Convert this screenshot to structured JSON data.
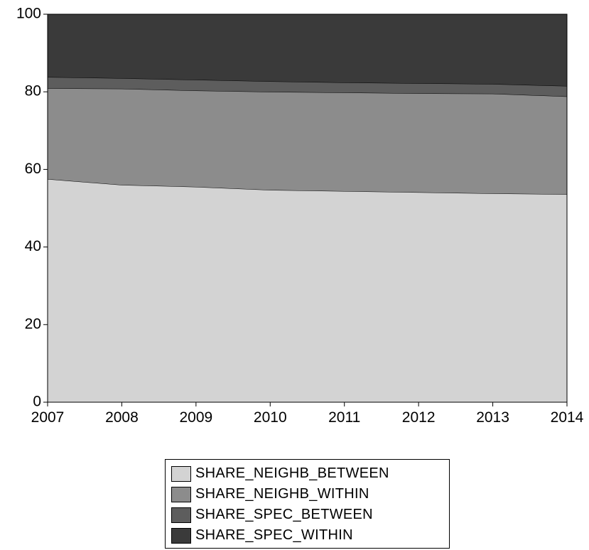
{
  "chart_data": {
    "type": "area",
    "stacked": true,
    "x": [
      "2007",
      "2008",
      "2009",
      "2010",
      "2011",
      "2012",
      "2013",
      "2014"
    ],
    "ylim": [
      0,
      100
    ],
    "yticks": [
      "0",
      "20",
      "40",
      "60",
      "80",
      "100"
    ],
    "grid": false,
    "legend_position": "bottom",
    "series": [
      {
        "name": "SHARE_NEIGHB_BETWEEN",
        "color": "#d3d3d3",
        "values": [
          57.5,
          56.0,
          55.5,
          54.7,
          54.4,
          54.1,
          53.8,
          53.6
        ]
      },
      {
        "name": "SHARE_NEIGHB_WITHIN",
        "color": "#8c8c8c",
        "values": [
          23.4,
          24.8,
          24.8,
          25.3,
          25.4,
          25.5,
          25.7,
          25.2
        ]
      },
      {
        "name": "SHARE_SPEC_BETWEEN",
        "color": "#5d5d5d",
        "values": [
          2.9,
          2.7,
          2.8,
          2.7,
          2.6,
          2.6,
          2.5,
          2.7
        ]
      },
      {
        "name": "SHARE_SPEC_WITHIN",
        "color": "#3a3a3a",
        "values": [
          16.2,
          16.5,
          16.9,
          17.3,
          17.6,
          17.8,
          18.0,
          18.5
        ]
      }
    ]
  }
}
